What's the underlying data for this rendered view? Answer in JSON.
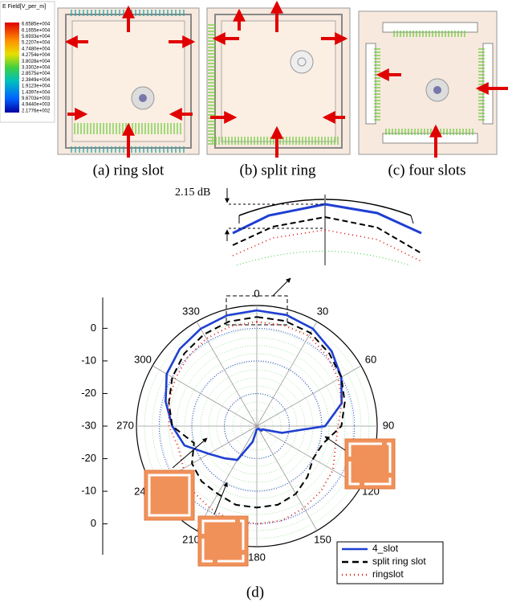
{
  "panels": [
    {
      "caption": "(a) ring slot"
    },
    {
      "caption": "(b) split ring"
    },
    {
      "caption": "(c) four slots"
    }
  ],
  "colorbar": {
    "title": "E Field[V_per_m]",
    "labels": [
      "6.6585e+004",
      "6.1655e+004",
      "5.6933e+004",
      "5.2207e+004",
      "4.7480e+004",
      "4.2754e+004",
      "3.8028e+004",
      "3.3302e+004",
      "2.8575e+004",
      "2.3849e+004",
      "1.9123e+004",
      "1.4397e+004",
      "9.6703e+003",
      "4.9440e+003",
      "2.1776e+002"
    ]
  },
  "inset": {
    "label": "2.15 dB"
  },
  "chart_data": {
    "type": "polar",
    "theta": [
      0,
      15,
      30,
      45,
      60,
      75,
      90,
      105,
      120,
      135,
      150,
      165,
      180,
      195,
      210,
      225,
      240,
      255,
      270,
      285,
      300,
      315,
      330,
      345
    ],
    "thetaticks": [
      0,
      30,
      60,
      90,
      120,
      150,
      180,
      210,
      240,
      270,
      300,
      330
    ],
    "rlim": [
      -30,
      7
    ],
    "rticks": [
      -30,
      -20,
      -10,
      0
    ],
    "series": [
      {
        "name": "4_slot",
        "color": "#1f3fd1",
        "style": "solid",
        "values": [
          5.5,
          5.3,
          4.5,
          2.5,
          0,
          -3,
          -9,
          -22,
          -28,
          -28,
          -29,
          -29,
          -29,
          -25,
          -18,
          -16,
          -13,
          -7,
          -4,
          -1,
          2,
          3.5,
          4.5,
          5.2
        ]
      },
      {
        "name": "split ring slot",
        "color": "#000000",
        "style": "dashed",
        "values": [
          3.5,
          3.4,
          3,
          1.5,
          0,
          -2,
          -4,
          -9,
          -10,
          -8,
          -6,
          -5,
          -5,
          -5,
          -6,
          -6,
          -7,
          -10,
          -4,
          -2,
          0,
          1.5,
          2.5,
          3.2
        ]
      },
      {
        "name": "ringslot",
        "color": "#e02020",
        "style": "dotted",
        "values": [
          2,
          2,
          2,
          0.5,
          -1,
          -3,
          -5,
          -5,
          -3,
          -2,
          -1,
          0,
          0,
          0,
          -1,
          -2,
          -4,
          -5,
          -3,
          -2,
          -1,
          0,
          1,
          1.7
        ]
      }
    ],
    "legend": "lower right"
  },
  "caption": "(d)"
}
